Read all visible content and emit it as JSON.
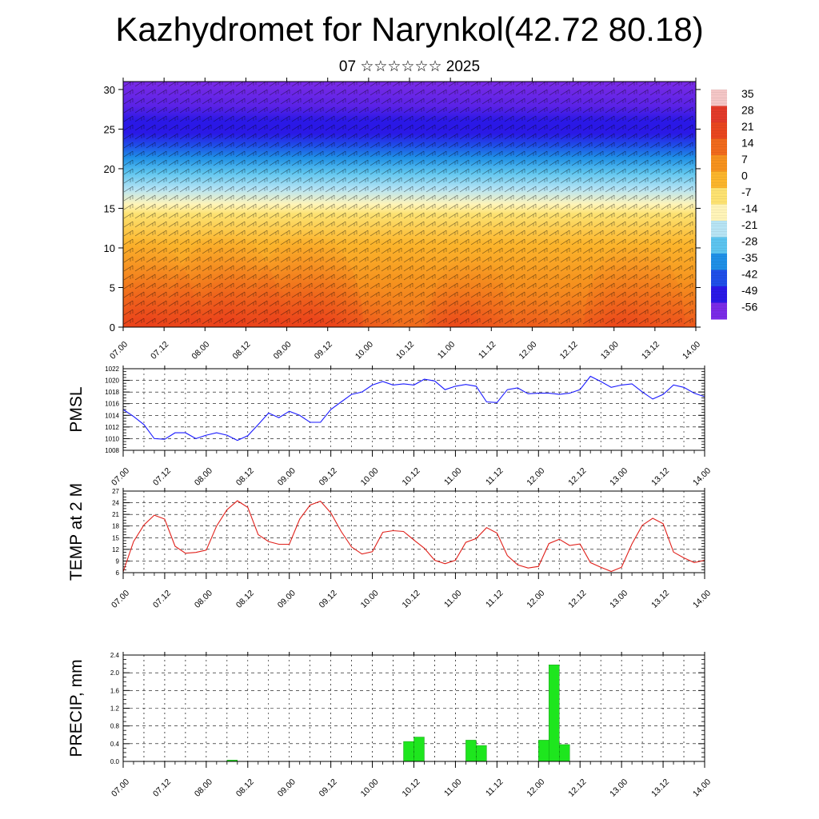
{
  "header": {
    "title": "Kazhydromet for Narynkol(42.72 80.18)",
    "subtitle": "07 ☆☆☆☆☆☆ 2025"
  },
  "colors": {
    "pmsl_line": "#1a1aff",
    "temp_line": "#e0201a",
    "precip_bar": "#1ee61e",
    "precip_bar_stroke": "#0a8a0a"
  },
  "time_ticks": [
    "07.00",
    "07.12",
    "08.00",
    "08.12",
    "09.00",
    "09.12",
    "10.00",
    "10.12",
    "11.00",
    "11.12",
    "12.00",
    "12.12",
    "13.00",
    "13.12",
    "14.00"
  ],
  "chart_data": [
    {
      "type": "heatmap",
      "title": "",
      "xlabel": "",
      "ylabel": "",
      "x_ticks": [
        "07.00",
        "07.12",
        "08.00",
        "08.12",
        "09.00",
        "09.12",
        "10.00",
        "10.12",
        "11.00",
        "11.12",
        "12.00",
        "12.12",
        "13.00",
        "13.12",
        "14.00"
      ],
      "y_ticks": [
        0,
        5,
        10,
        15,
        20,
        25,
        30
      ],
      "ylim": [
        0,
        31
      ],
      "colorbar_labels": [
        "35",
        "28",
        "21",
        "14",
        "7",
        "0",
        "-7",
        "-14",
        "-21",
        "-28",
        "-35",
        "-42",
        "-49",
        "-56"
      ],
      "colorbar_colors": [
        "#f4c6c6",
        "#e23a2a",
        "#e8461f",
        "#f06a1c",
        "#f6921e",
        "#fbb52c",
        "#fde271",
        "#fff4b8",
        "#b7e4f4",
        "#5cc4ef",
        "#1f8fe6",
        "#1f4ee8",
        "#2a18e6",
        "#7a2be6"
      ],
      "surface_temp_profile_c": [
        {
          "x": "07.00",
          "warmth": 0.55
        },
        {
          "x": "07.06",
          "warmth": 0.95
        },
        {
          "x": "07.12",
          "warmth": 0.7
        },
        {
          "x": "08.00",
          "warmth": 0.55
        },
        {
          "x": "08.06",
          "warmth": 1.0
        },
        {
          "x": "08.12",
          "warmth": 0.75
        },
        {
          "x": "09.00",
          "warmth": 0.6
        },
        {
          "x": "09.06",
          "warmth": 1.0
        },
        {
          "x": "09.12",
          "warmth": 0.6
        },
        {
          "x": "10.00",
          "warmth": 0.45
        },
        {
          "x": "11.00",
          "warmth": 0.5
        },
        {
          "x": "11.06",
          "warmth": 0.75
        },
        {
          "x": "12.00",
          "warmth": 0.45
        },
        {
          "x": "12.12",
          "warmth": 0.4
        },
        {
          "x": "13.00",
          "warmth": 0.45
        },
        {
          "x": "13.06",
          "warmth": 0.9
        },
        {
          "x": "14.00",
          "warmth": 0.55
        }
      ]
    },
    {
      "type": "line",
      "ylabel": "PMSL",
      "ylim": [
        1008,
        1022
      ],
      "y_ticks": [
        1008,
        1010,
        1012,
        1014,
        1016,
        1018,
        1020,
        1022
      ],
      "x_ticks": [
        "07.00",
        "07.12",
        "08.00",
        "08.12",
        "09.00",
        "09.12",
        "10.00",
        "10.12",
        "11.00",
        "11.12",
        "12.00",
        "12.12",
        "13.00",
        "13.12",
        "14.00"
      ],
      "x_hours": [
        0,
        3,
        6,
        9,
        12,
        15,
        18,
        21,
        24,
        27,
        30,
        33,
        36,
        39,
        42,
        45,
        48,
        51,
        54,
        57,
        60,
        63,
        66,
        69,
        72,
        75,
        78,
        81,
        84,
        87,
        90,
        93,
        96,
        99,
        102,
        105,
        108,
        111,
        114,
        117,
        120,
        123,
        126,
        129,
        132,
        135,
        138,
        141,
        144,
        147,
        150,
        153,
        156,
        159,
        162,
        165,
        168
      ],
      "values": [
        1015.0,
        1013.8,
        1012.4,
        1010.0,
        1009.9,
        1011.0,
        1011.0,
        1010.0,
        1010.6,
        1011.0,
        1010.6,
        1009.7,
        1010.5,
        1012.4,
        1014.4,
        1013.6,
        1014.7,
        1014.0,
        1012.8,
        1012.8,
        1015.0,
        1016.3,
        1017.6,
        1018.0,
        1019.2,
        1019.8,
        1019.2,
        1019.4,
        1019.2,
        1020.2,
        1019.9,
        1018.4,
        1019.0,
        1019.3,
        1019.0,
        1016.3,
        1016.2,
        1018.4,
        1018.7,
        1017.7,
        1017.8,
        1017.8,
        1017.6,
        1017.8,
        1018.4,
        1020.7,
        1019.8,
        1018.8,
        1019.2,
        1019.4,
        1018.0,
        1016.8,
        1017.6,
        1019.2,
        1018.8,
        1017.8,
        1017.2
      ]
    },
    {
      "type": "line",
      "ylabel": "TEMP at 2 M",
      "ylim": [
        6,
        27
      ],
      "y_ticks": [
        6,
        9,
        12,
        15,
        18,
        21,
        24,
        27
      ],
      "x_ticks": [
        "07.00",
        "07.12",
        "08.00",
        "08.12",
        "09.00",
        "09.12",
        "10.00",
        "10.12",
        "11.00",
        "11.12",
        "12.00",
        "12.12",
        "13.00",
        "13.12",
        "14.00"
      ],
      "x_hours": [
        0,
        3,
        6,
        9,
        12,
        15,
        18,
        21,
        24,
        27,
        30,
        33,
        36,
        39,
        42,
        45,
        48,
        51,
        54,
        57,
        60,
        63,
        66,
        69,
        72,
        75,
        78,
        81,
        84,
        87,
        90,
        93,
        96,
        99,
        102,
        105,
        108,
        111,
        114,
        117,
        120,
        123,
        126,
        129,
        132,
        135,
        138,
        141,
        144,
        147,
        150,
        153,
        156,
        159,
        162,
        165,
        168
      ],
      "values": [
        6.2,
        14.0,
        18.3,
        20.8,
        19.8,
        12.8,
        11.0,
        11.2,
        11.8,
        18.0,
        22.2,
        24.5,
        22.8,
        15.8,
        14.0,
        13.3,
        13.3,
        19.8,
        23.4,
        24.4,
        21.4,
        16.6,
        12.6,
        10.8,
        11.4,
        16.4,
        16.8,
        16.6,
        14.4,
        12.3,
        9.2,
        8.3,
        9.2,
        13.8,
        14.8,
        17.6,
        16.2,
        10.4,
        8.0,
        7.2,
        7.6,
        13.5,
        14.6,
        13.0,
        13.4,
        8.6,
        7.4,
        6.3,
        7.4,
        13.4,
        18.2,
        20.0,
        18.6,
        11.3,
        9.8,
        8.6,
        9.2
      ]
    },
    {
      "type": "bar",
      "ylabel": "PRECIP, mm",
      "ylim": [
        0.0,
        2.4
      ],
      "y_ticks": [
        "0.0",
        "0.4",
        "0.8",
        "1.2",
        "1.6",
        "2.0",
        "2.4"
      ],
      "x_ticks": [
        "07.00",
        "07.12",
        "08.00",
        "08.12",
        "09.00",
        "09.12",
        "10.00",
        "10.12",
        "11.00",
        "11.12",
        "12.00",
        "12.12",
        "13.00",
        "13.12",
        "14.00"
      ],
      "bars": [
        {
          "x_hour": 31.5,
          "value": 0.03
        },
        {
          "x_hour": 82.5,
          "value": 0.45
        },
        {
          "x_hour": 85.5,
          "value": 0.55
        },
        {
          "x_hour": 100.5,
          "value": 0.48
        },
        {
          "x_hour": 103.5,
          "value": 0.36
        },
        {
          "x_hour": 121.5,
          "value": 0.48
        },
        {
          "x_hour": 124.5,
          "value": 2.18
        },
        {
          "x_hour": 127.5,
          "value": 0.38
        }
      ]
    }
  ]
}
